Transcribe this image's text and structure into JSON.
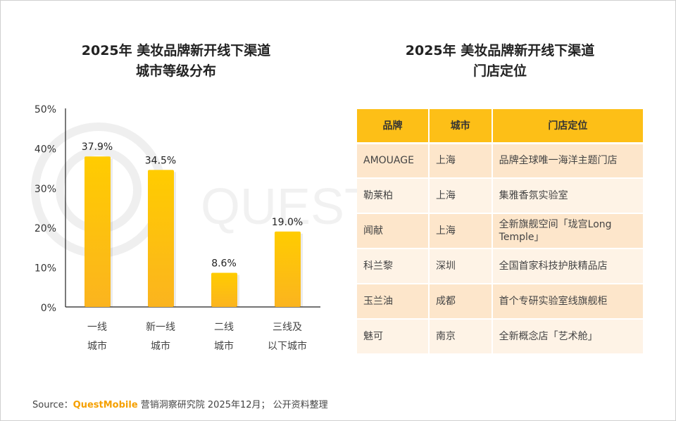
{
  "left_title": [
    "2025年 美妆品牌新开线下渠道",
    "城市等级分布"
  ],
  "right_title": [
    "2025年 美妆品牌新开线下渠道",
    "门店定位"
  ],
  "chart_data": {
    "type": "bar",
    "categories": [
      [
        "一线",
        "城市"
      ],
      [
        "新一线",
        "城市"
      ],
      [
        "二线",
        "城市"
      ],
      [
        "三线及",
        "以下城市"
      ]
    ],
    "values": [
      37.9,
      34.5,
      8.6,
      19.0
    ],
    "data_labels": [
      "37.9%",
      "34.5%",
      "8.6%",
      "19.0%"
    ],
    "yticks": [
      "0%",
      "10%",
      "20%",
      "30%",
      "40%",
      "50%"
    ],
    "ylim": [
      0,
      50
    ],
    "grid": false,
    "bar_color_top": "#ffcc00",
    "bar_color_bottom": "#fbb41f"
  },
  "table": {
    "headers": [
      "品牌",
      "城市",
      "门店定位"
    ],
    "rows": [
      [
        "AMOUAGE",
        "上海",
        "品牌全球唯一海洋主题门店"
      ],
      [
        "勒莱柏",
        "上海",
        "集雅香氛实验室"
      ],
      [
        "闻献",
        "上海",
        "全新旗舰空间「珑宫Long Temple」"
      ],
      [
        "科兰黎",
        "深圳",
        "全国首家科技护肤精品店"
      ],
      [
        "玉兰油",
        "成都",
        "首个专研实验室线旗舰柜"
      ],
      [
        "魅可",
        "南京",
        "全新概念店「艺术舱」"
      ]
    ],
    "header_color": "#fdbf17"
  },
  "footer": {
    "prefix": "Source：",
    "brand": "QuestMobile",
    "text": " 营销洞察研究院 2025年12月； 公开资料整理"
  },
  "watermark": "QUEST"
}
